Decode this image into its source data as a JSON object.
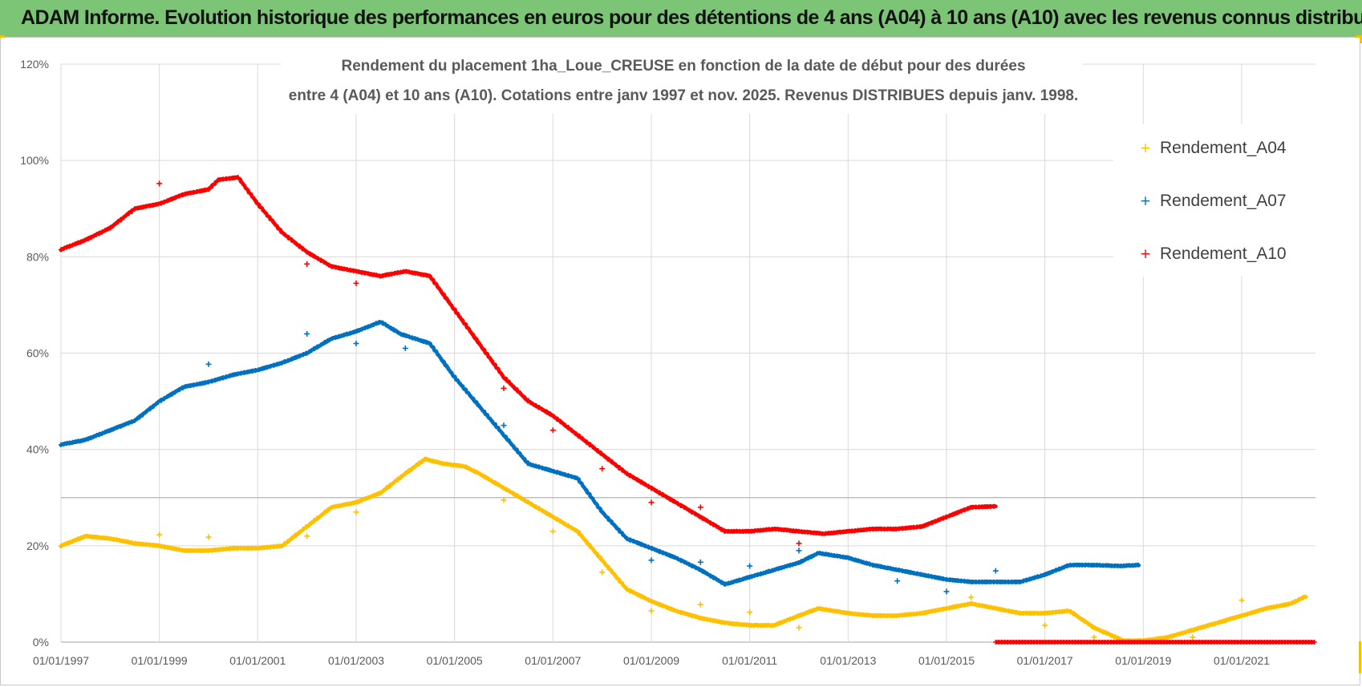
{
  "header": {
    "title": "ADAM Informe. Evolution historique des performances en euros pour des détentions de 4 ans (A04) à 10 ans (A10) avec les revenus connus distribués"
  },
  "chart_data": {
    "type": "scatter",
    "title_line1": "Rendement du placement 1ha_Loue_CREUSE en fonction de la date de début pour des durées",
    "title_line2": "entre 4 (A04) et 10 ans (A10).  Cotations entre janv 1997 et nov. 2025. Revenus DISTRIBUES depuis janv. 1998.",
    "xlabel": "",
    "ylabel": "",
    "xlim": [
      1997.0,
      2022.5
    ],
    "ylim": [
      0,
      120
    ],
    "x_ticks": [
      1997,
      1999,
      2001,
      2003,
      2005,
      2007,
      2009,
      2011,
      2013,
      2015,
      2017,
      2019,
      2021
    ],
    "x_tick_labels": [
      "01/01/1997",
      "01/01/1999",
      "01/01/2001",
      "01/01/2003",
      "01/01/2005",
      "01/01/2007",
      "01/01/2009",
      "01/01/2011",
      "01/01/2013",
      "01/01/2015",
      "01/01/2017",
      "01/01/2019",
      "01/01/2021"
    ],
    "y_ticks": [
      0,
      20,
      40,
      60,
      80,
      100,
      120
    ],
    "y_tick_labels": [
      "0%",
      "20%",
      "40%",
      "60%",
      "80%",
      "100%",
      "120%"
    ],
    "reference_line": 30,
    "grid": true,
    "legend_position": "top-right",
    "series": [
      {
        "name": "Rendement_A04",
        "color": "#ffc000",
        "points": [
          [
            1997.0,
            20
          ],
          [
            1997.5,
            22
          ],
          [
            1998.0,
            21.5
          ],
          [
            1998.5,
            20.5
          ],
          [
            1999.0,
            20
          ],
          [
            1999.5,
            19
          ],
          [
            2000.0,
            19
          ],
          [
            2000.5,
            19.5
          ],
          [
            2001.0,
            19.5
          ],
          [
            2001.5,
            20
          ],
          [
            2002.0,
            24
          ],
          [
            2002.5,
            28
          ],
          [
            2003.0,
            29
          ],
          [
            2003.5,
            31
          ],
          [
            2004.0,
            35
          ],
          [
            2004.4,
            38
          ],
          [
            2004.8,
            37
          ],
          [
            2005.2,
            36.5
          ],
          [
            2005.5,
            35
          ],
          [
            2006.0,
            32
          ],
          [
            2006.5,
            29
          ],
          [
            2007.0,
            26
          ],
          [
            2007.5,
            23
          ],
          [
            2008.0,
            17
          ],
          [
            2008.5,
            11
          ],
          [
            2009.0,
            8.5
          ],
          [
            2009.5,
            6.5
          ],
          [
            2010.0,
            5
          ],
          [
            2010.5,
            4
          ],
          [
            2011.0,
            3.5
          ],
          [
            2011.5,
            3.5
          ],
          [
            2012.0,
            5.5
          ],
          [
            2012.4,
            7
          ],
          [
            2013.0,
            6
          ],
          [
            2013.5,
            5.5
          ],
          [
            2014.0,
            5.5
          ],
          [
            2014.5,
            6
          ],
          [
            2015.0,
            7
          ],
          [
            2015.5,
            8
          ],
          [
            2016.0,
            7
          ],
          [
            2016.5,
            6
          ],
          [
            2017.0,
            6
          ],
          [
            2017.5,
            6.5
          ],
          [
            2018.0,
            3
          ],
          [
            2018.6,
            0.3
          ],
          [
            2019.0,
            0.3
          ],
          [
            2019.5,
            1
          ],
          [
            2020.0,
            2.5
          ],
          [
            2020.5,
            4
          ],
          [
            2021.0,
            5.5
          ],
          [
            2021.5,
            7
          ],
          [
            2022.0,
            8
          ],
          [
            2022.3,
            9.5
          ]
        ],
        "outliers": [
          [
            1999.0,
            22.3
          ],
          [
            2000.0,
            21.8
          ],
          [
            2002.0,
            22
          ],
          [
            2003.0,
            27
          ],
          [
            2006.0,
            29.5
          ],
          [
            2007.0,
            23
          ],
          [
            2008.0,
            14.5
          ],
          [
            2009.0,
            6.5
          ],
          [
            2010.0,
            7.8
          ],
          [
            2011.0,
            6.2
          ],
          [
            2012.0,
            3
          ],
          [
            2015.5,
            9.3
          ],
          [
            2017.0,
            3.5
          ],
          [
            2018.0,
            1
          ],
          [
            2020.0,
            1
          ],
          [
            2021.0,
            8.7
          ]
        ]
      },
      {
        "name": "Rendement_A07",
        "color": "#0070c0",
        "points": [
          [
            1997.0,
            41
          ],
          [
            1997.5,
            42
          ],
          [
            1998.0,
            44
          ],
          [
            1998.5,
            46
          ],
          [
            1999.0,
            50
          ],
          [
            1999.5,
            53
          ],
          [
            2000.0,
            54
          ],
          [
            2000.5,
            55.5
          ],
          [
            2001.0,
            56.5
          ],
          [
            2001.5,
            58
          ],
          [
            2002.0,
            60
          ],
          [
            2002.5,
            63
          ],
          [
            2003.0,
            64.5
          ],
          [
            2003.5,
            66.5
          ],
          [
            2003.9,
            64
          ],
          [
            2004.5,
            62
          ],
          [
            2005.0,
            55
          ],
          [
            2005.5,
            49
          ],
          [
            2006.0,
            43
          ],
          [
            2006.5,
            37
          ],
          [
            2007.0,
            35.5
          ],
          [
            2007.5,
            34
          ],
          [
            2008.0,
            27
          ],
          [
            2008.5,
            21.5
          ],
          [
            2009.0,
            19.5
          ],
          [
            2009.5,
            17.5
          ],
          [
            2010.0,
            15
          ],
          [
            2010.5,
            12
          ],
          [
            2011.0,
            13.5
          ],
          [
            2011.5,
            15
          ],
          [
            2012.0,
            16.5
          ],
          [
            2012.4,
            18.5
          ],
          [
            2013.0,
            17.5
          ],
          [
            2013.5,
            16
          ],
          [
            2014.0,
            15
          ],
          [
            2014.5,
            14
          ],
          [
            2015.0,
            13
          ],
          [
            2015.5,
            12.5
          ],
          [
            2016.0,
            12.5
          ],
          [
            2016.5,
            12.5
          ],
          [
            2017.0,
            14
          ],
          [
            2017.5,
            16
          ],
          [
            2018.0,
            16
          ],
          [
            2018.5,
            15.8
          ],
          [
            2018.9,
            16
          ]
        ],
        "outliers": [
          [
            2000.0,
            57.7
          ],
          [
            2002.0,
            64
          ],
          [
            2003.0,
            62
          ],
          [
            2004.0,
            61
          ],
          [
            2006.0,
            45
          ],
          [
            2009.0,
            17
          ],
          [
            2010.0,
            16.6
          ],
          [
            2011.0,
            15.8
          ],
          [
            2012.0,
            19
          ],
          [
            2014.0,
            12.7
          ],
          [
            2015.0,
            10.5
          ],
          [
            2016.0,
            14.8
          ]
        ]
      },
      {
        "name": "Rendement_A10",
        "color": "#ff0000",
        "points": [
          [
            1997.0,
            81.5
          ],
          [
            1997.5,
            83.5
          ],
          [
            1998.0,
            86
          ],
          [
            1998.5,
            90
          ],
          [
            1999.0,
            91
          ],
          [
            1999.5,
            93
          ],
          [
            2000.0,
            94
          ],
          [
            2000.2,
            96
          ],
          [
            2000.6,
            96.5
          ],
          [
            2001.0,
            91
          ],
          [
            2001.5,
            85
          ],
          [
            2002.0,
            81
          ],
          [
            2002.5,
            78
          ],
          [
            2003.0,
            77
          ],
          [
            2003.5,
            76
          ],
          [
            2004.0,
            77
          ],
          [
            2004.5,
            76
          ],
          [
            2005.0,
            69
          ],
          [
            2005.5,
            62
          ],
          [
            2006.0,
            55
          ],
          [
            2006.5,
            50
          ],
          [
            2007.0,
            47
          ],
          [
            2007.5,
            43
          ],
          [
            2008.0,
            39
          ],
          [
            2008.5,
            35
          ],
          [
            2009.0,
            32
          ],
          [
            2009.5,
            29
          ],
          [
            2010.0,
            26
          ],
          [
            2010.5,
            23
          ],
          [
            2011.0,
            23
          ],
          [
            2011.5,
            23.5
          ],
          [
            2012.0,
            23
          ],
          [
            2012.5,
            22.5
          ],
          [
            2013.0,
            23
          ],
          [
            2013.5,
            23.5
          ],
          [
            2014.0,
            23.5
          ],
          [
            2014.5,
            24
          ],
          [
            2015.0,
            26
          ],
          [
            2015.5,
            28
          ],
          [
            2016.0,
            28.2
          ]
        ],
        "outliers": [
          [
            1999.0,
            95.2
          ],
          [
            2002.0,
            78.5
          ],
          [
            2003.0,
            74.5
          ],
          [
            2006.0,
            52.7
          ],
          [
            2007.0,
            44
          ],
          [
            2008.0,
            36
          ],
          [
            2009.0,
            29
          ],
          [
            2010.0,
            28
          ],
          [
            2012.0,
            20.5
          ]
        ],
        "zero_segment": [
          2016.0,
          2022.5
        ]
      }
    ]
  }
}
